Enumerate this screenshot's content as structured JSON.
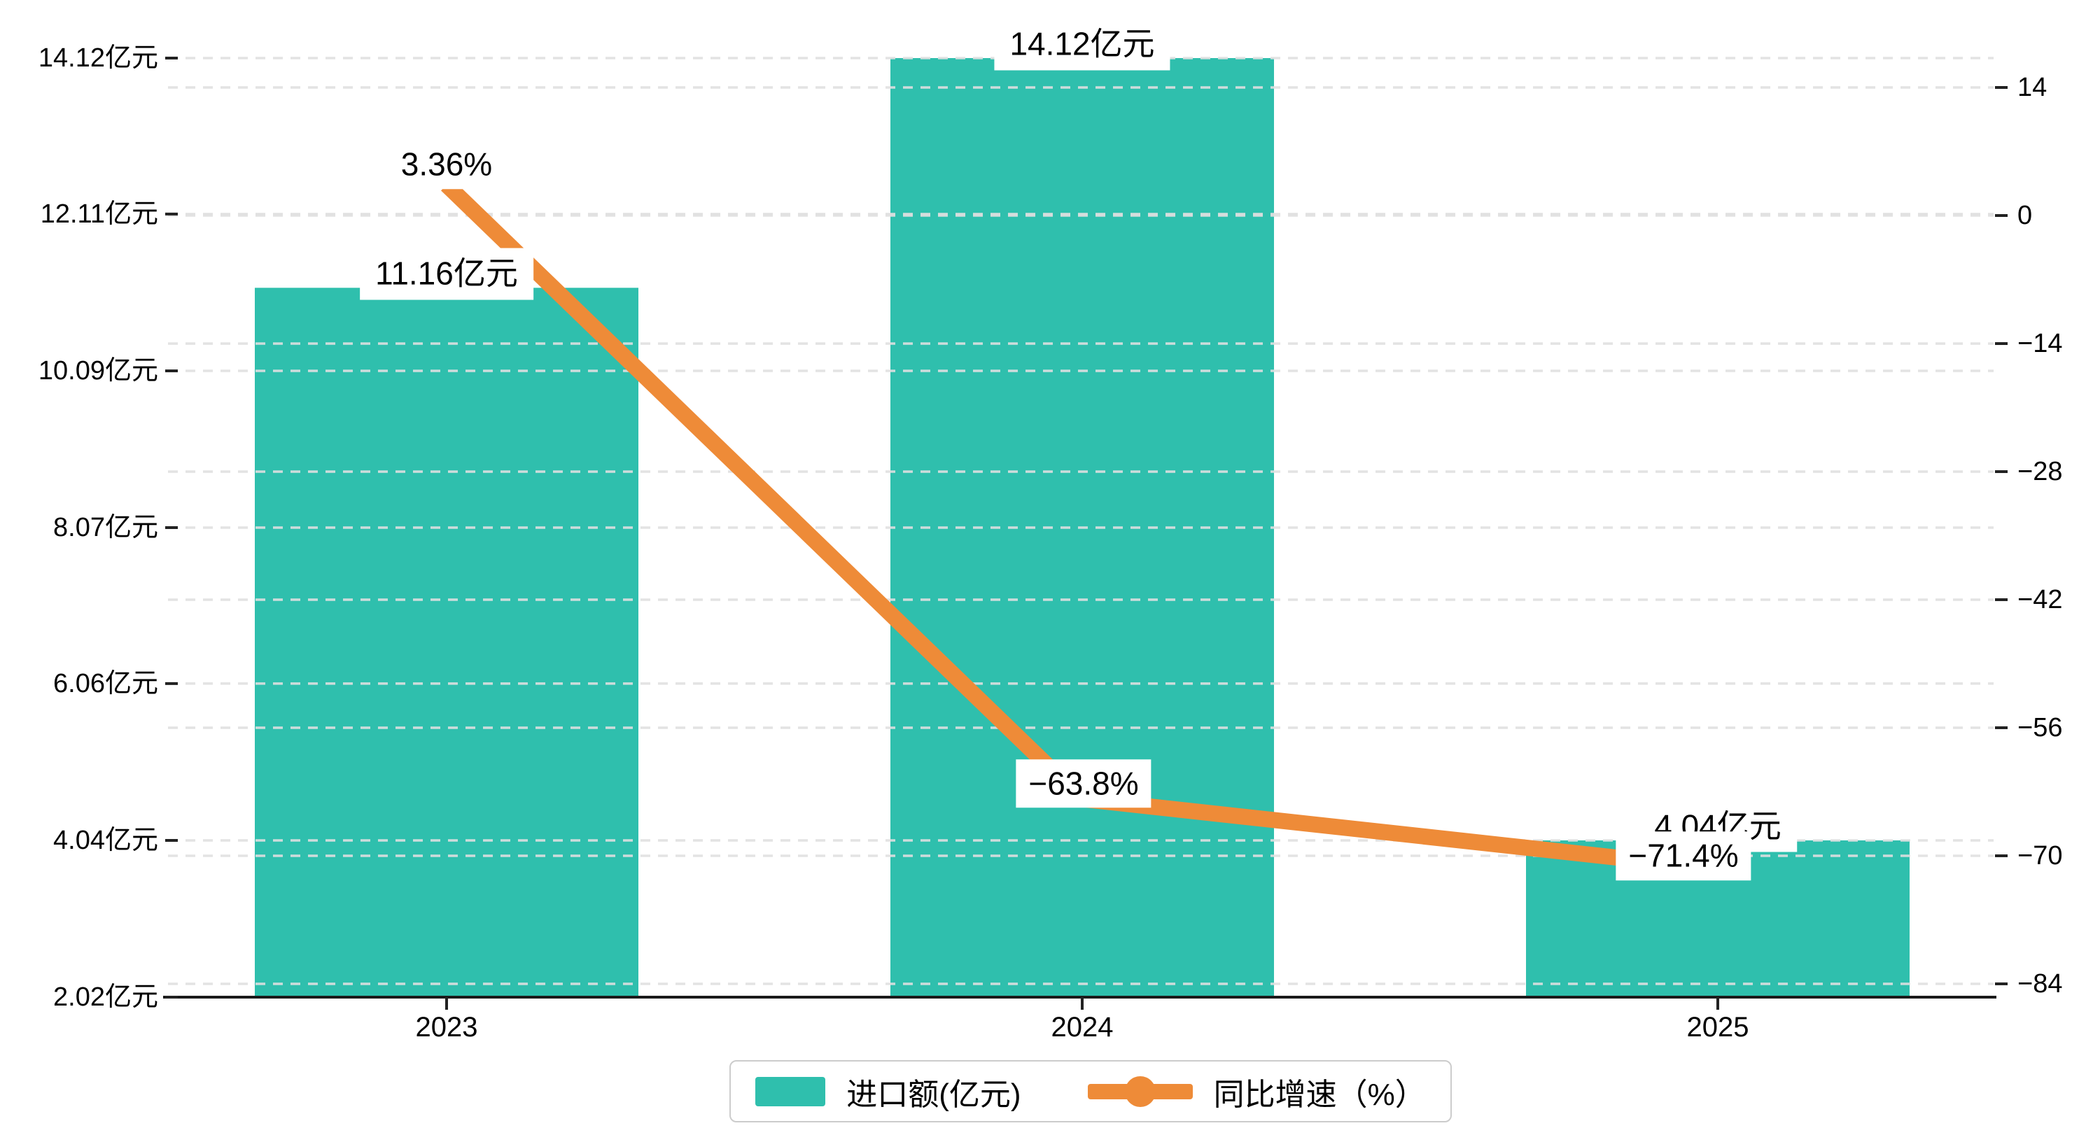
{
  "chart_data": {
    "type": "bar+line dual-axis combo",
    "categories": [
      "2023",
      "2024",
      "2025"
    ],
    "series": [
      {
        "name": "进口额(亿元)",
        "type": "bar",
        "values": [
          11.16,
          14.12,
          4.04
        ],
        "unit": "亿元",
        "labels": [
          "11.16亿元",
          "14.12亿元",
          "4.04亿元"
        ]
      },
      {
        "name": "同比增速（%）",
        "type": "line",
        "values": [
          3.36,
          -63.8,
          -71.4
        ],
        "unit": "%",
        "labels": [
          "3.36%",
          "−63.8%",
          "−71.4%"
        ]
      }
    ],
    "left_axis": {
      "min": 2.02,
      "max": 14.12,
      "tick_labels": [
        "14.12亿元",
        "12.11亿元",
        "10.09亿元",
        "8.07亿元",
        "6.06亿元",
        "4.04亿元",
        "2.02亿元"
      ],
      "tick_values": [
        14.12,
        12.11,
        10.09,
        8.07,
        6.06,
        4.04,
        2.02
      ]
    },
    "right_axis": {
      "min": -84,
      "max": 14,
      "step": 14,
      "tick_labels": [
        "14",
        "0",
        "−14",
        "−28",
        "−42",
        "−56",
        "−70",
        "−84"
      ],
      "tick_values": [
        14,
        0,
        -14,
        -28,
        -42,
        -56,
        -70,
        -84
      ]
    },
    "grid": true,
    "legend_position": "bottom-center",
    "legend": {
      "items": [
        {
          "label": "进口额(亿元)",
          "marker": "bar-swatch"
        },
        {
          "label": "同比增速（%）",
          "marker": "line-dot"
        }
      ]
    }
  },
  "colors": {
    "bar": "#2FBFAD",
    "line": "#EE8B38",
    "grid": "#E0E0E0",
    "axis": "#1A1A1A",
    "text": "#000000",
    "label_bg": "#FFFFFF",
    "legend_border": "#CCCCCC"
  }
}
